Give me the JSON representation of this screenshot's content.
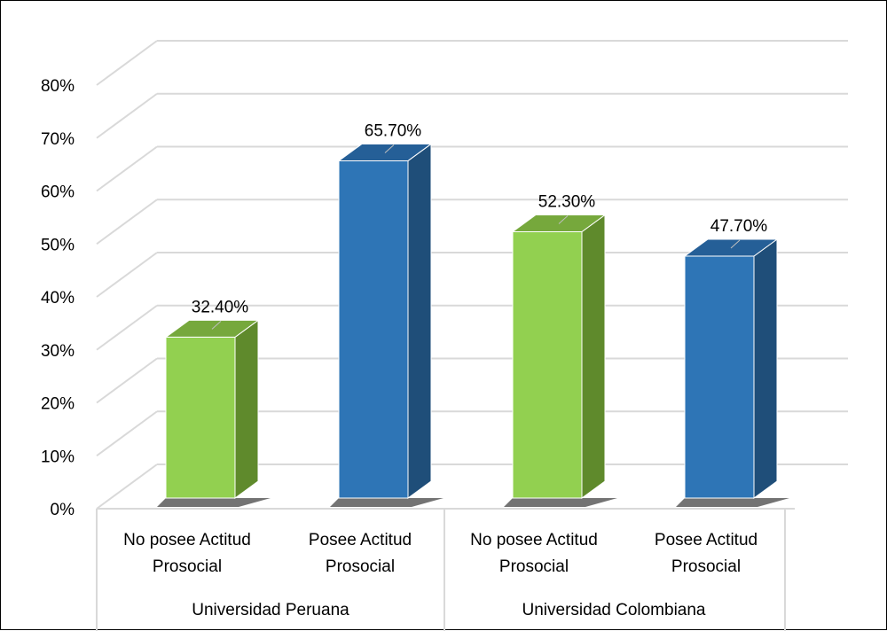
{
  "chart_data": {
    "type": "bar",
    "title": "",
    "xlabel": "",
    "ylabel": "",
    "ylim": [
      0,
      0.8
    ],
    "y_ticks": [
      "0%",
      "10%",
      "20%",
      "30%",
      "40%",
      "50%",
      "60%",
      "70%",
      "80%"
    ],
    "grid": true,
    "legend": "none",
    "categories": [
      {
        "label_lines": [
          "No posee Actitud",
          "Prosocial"
        ],
        "group": "Universidad Peruana",
        "value": 0.324,
        "data_label": "32.40%",
        "color": "#92d050",
        "side_color": "#5f8a2c",
        "top_color": "#76a83c"
      },
      {
        "label_lines": [
          "Posee Actitud",
          "Prosocial"
        ],
        "group": "Universidad Peruana",
        "value": 0.657,
        "data_label": "65.70%",
        "color": "#2e75b6",
        "side_color": "#1f4e79",
        "top_color": "#255f97"
      },
      {
        "label_lines": [
          "No posee Actitud",
          "Prosocial"
        ],
        "group": "Universidad Colombiana",
        "value": 0.523,
        "data_label": "52.30%",
        "color": "#92d050",
        "side_color": "#5f8a2c",
        "top_color": "#76a83c"
      },
      {
        "label_lines": [
          "Posee Actitud",
          "Prosocial"
        ],
        "group": "Universidad Colombiana",
        "value": 0.477,
        "data_label": "47.70%",
        "color": "#2e75b6",
        "side_color": "#1f4e79",
        "top_color": "#255f97"
      }
    ],
    "groups": [
      "Universidad Peruana",
      "Universidad Colombiana"
    ]
  }
}
